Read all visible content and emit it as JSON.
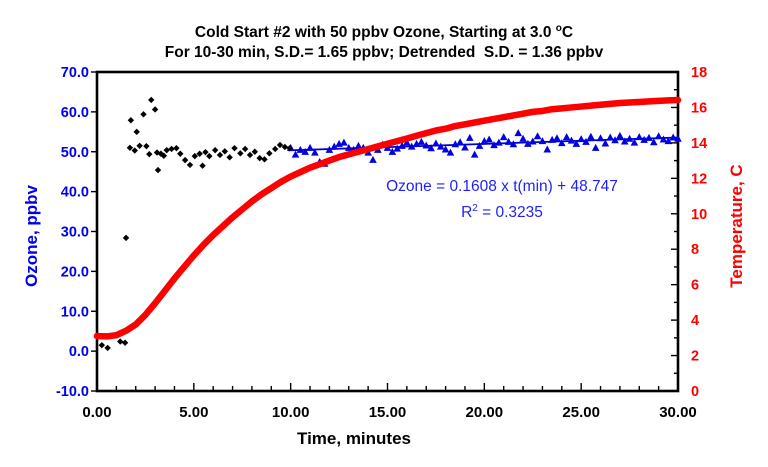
{
  "header": {
    "title_line1_prefix": "Cold Start #2 with 50 ppbv Ozone, Starting at 3.0 ",
    "title_line1_sup": "o",
    "title_line1_suffix": "C",
    "title_line2": "For 10-30 min, S.D.= 1.65 ppbv; Detrended  S.D. = 1.36 ppbv"
  },
  "annotation": {
    "equation": "Ozone = 0.1608 x t(min) + 48.747",
    "r2_prefix": "R",
    "r2_sup": "2",
    "r2_suffix": " = 0.3235"
  },
  "chart_data": {
    "type": "combo",
    "title": "Cold Start #2 with 50 ppbv Ozone, Starting at 3.0 °C",
    "subtitle": "For 10-30 min, S.D.= 1.65 ppbv; Detrended  S.D. = 1.36 ppbv",
    "xlabel": "Time, minutes",
    "ylabel_left": "Ozone, ppbv",
    "ylabel_right": "Temperature, C",
    "xlim": [
      0,
      30
    ],
    "ylim_left": [
      -10,
      70
    ],
    "ylim_right": [
      0,
      18
    ],
    "grid": false,
    "legend": false,
    "annotation_line1": "Ozone = 0.1608 x t(min) + 48.747",
    "annotation_line2": "R² = 0.3235",
    "axes": {
      "x": {
        "major_values": [
          0,
          5,
          10,
          15,
          20,
          25,
          30
        ],
        "labels": [
          "0.00",
          "5.00",
          "10.00",
          "15.00",
          "20.00",
          "25.00",
          "30.00"
        ],
        "minor_step": 1,
        "color": "#000000"
      },
      "y_left": {
        "major_values": [
          70,
          60,
          50,
          40,
          30,
          20,
          10,
          0,
          -10
        ],
        "labels": [
          "70.0",
          "60.0",
          "50.0",
          "40.0",
          "30.0",
          "20.0",
          "10.0",
          "0.0",
          "-10.0"
        ],
        "color": "#0000f0"
      },
      "y_right": {
        "major_values": [
          18,
          16,
          14,
          12,
          10,
          8,
          6,
          4,
          2,
          0
        ],
        "labels": [
          "18",
          "16",
          "14",
          "12",
          "10",
          "8",
          "6",
          "4",
          "2",
          "0"
        ],
        "minor_step": 1,
        "color": "#ff0000"
      }
    },
    "series": [
      {
        "name": "ozone-trend-line",
        "type": "line",
        "axis": "left",
        "color": "#0000cc",
        "width": 1.8,
        "points": [
          [
            9.9,
            50.34
          ],
          [
            30,
            53.57
          ]
        ]
      },
      {
        "name": "ozone-10-30-min",
        "type": "scatter",
        "marker": "triangle",
        "axis": "left",
        "color": "#0000e0",
        "points": [
          [
            10.0,
            50.9
          ],
          [
            10.25,
            49.2
          ],
          [
            10.5,
            50.4
          ],
          [
            10.75,
            49.9
          ],
          [
            11.0,
            50.9
          ],
          [
            11.25,
            49.7
          ],
          [
            11.5,
            47.4
          ],
          [
            11.75,
            46.9
          ],
          [
            12.0,
            50.4
          ],
          [
            12.25,
            51.2
          ],
          [
            12.5,
            51.9
          ],
          [
            12.75,
            52.2
          ],
          [
            13.0,
            50.9
          ],
          [
            13.25,
            50.4
          ],
          [
            13.5,
            51.4
          ],
          [
            13.75,
            50.9
          ],
          [
            14.0,
            49.7
          ],
          [
            14.25,
            47.9
          ],
          [
            14.5,
            50.4
          ],
          [
            14.75,
            51.7
          ],
          [
            15.0,
            50.9
          ],
          [
            15.25,
            49.9
          ],
          [
            15.5,
            50.7
          ],
          [
            15.75,
            51.4
          ],
          [
            16.0,
            52.2
          ],
          [
            16.25,
            51.2
          ],
          [
            16.5,
            51.9
          ],
          [
            16.75,
            52.4
          ],
          [
            17.0,
            51.5
          ],
          [
            17.25,
            50.8
          ],
          [
            17.5,
            52.0
          ],
          [
            17.75,
            51.2
          ],
          [
            18.0,
            50.5
          ],
          [
            18.25,
            49.7
          ],
          [
            18.5,
            51.8
          ],
          [
            18.75,
            52.3
          ],
          [
            19.0,
            51.0
          ],
          [
            19.25,
            53.4
          ],
          [
            19.5,
            49.2
          ],
          [
            19.75,
            51.4
          ],
          [
            20.0,
            52.6
          ],
          [
            20.25,
            53.0
          ],
          [
            20.5,
            51.6
          ],
          [
            20.75,
            52.2
          ],
          [
            21.0,
            53.6
          ],
          [
            21.25,
            52.4
          ],
          [
            21.5,
            51.8
          ],
          [
            21.75,
            54.6
          ],
          [
            22.0,
            53.2
          ],
          [
            22.25,
            51.9
          ],
          [
            22.5,
            52.5
          ],
          [
            22.75,
            53.8
          ],
          [
            23.0,
            52.6
          ],
          [
            23.25,
            50.5
          ],
          [
            23.5,
            52.9
          ],
          [
            23.75,
            53.3
          ],
          [
            24.0,
            52.1
          ],
          [
            24.25,
            53.6
          ],
          [
            24.5,
            52.7
          ],
          [
            24.75,
            51.9
          ],
          [
            25.0,
            53.1
          ],
          [
            25.25,
            52.4
          ],
          [
            25.5,
            53.7
          ],
          [
            25.75,
            50.9
          ],
          [
            26.0,
            53.3
          ],
          [
            26.25,
            52.0
          ],
          [
            26.5,
            53.5
          ],
          [
            26.75,
            52.8
          ],
          [
            27.0,
            53.9
          ],
          [
            27.25,
            52.5
          ],
          [
            27.5,
            53.2
          ],
          [
            27.75,
            52.2
          ],
          [
            28.0,
            53.6
          ],
          [
            28.25,
            52.9
          ],
          [
            28.5,
            53.4
          ],
          [
            28.75,
            52.3
          ],
          [
            29.0,
            53.8
          ],
          [
            29.25,
            53.0
          ],
          [
            29.5,
            52.6
          ],
          [
            29.75,
            53.5
          ],
          [
            30.0,
            53.2
          ]
        ]
      },
      {
        "name": "ozone-0-10-min",
        "type": "scatter",
        "marker": "diamond",
        "axis": "left",
        "color": "#000000",
        "points": [
          [
            0.25,
            1.5
          ],
          [
            0.55,
            0.8
          ],
          [
            1.2,
            2.4
          ],
          [
            1.45,
            2.1
          ],
          [
            1.5,
            28.4
          ],
          [
            1.7,
            51.0
          ],
          [
            1.75,
            57.9
          ],
          [
            1.95,
            50.3
          ],
          [
            2.05,
            55.0
          ],
          [
            2.2,
            51.5
          ],
          [
            2.4,
            59.4
          ],
          [
            2.55,
            51.4
          ],
          [
            2.7,
            49.4
          ],
          [
            2.8,
            63.0
          ],
          [
            3.0,
            60.6
          ],
          [
            3.1,
            49.8
          ],
          [
            3.15,
            45.4
          ],
          [
            3.3,
            49.5
          ],
          [
            3.45,
            49.0
          ],
          [
            3.6,
            50.4
          ],
          [
            3.85,
            50.7
          ],
          [
            4.1,
            50.9
          ],
          [
            4.3,
            49.5
          ],
          [
            4.55,
            47.9
          ],
          [
            4.8,
            46.7
          ],
          [
            5.05,
            48.9
          ],
          [
            5.3,
            49.5
          ],
          [
            5.45,
            46.5
          ],
          [
            5.6,
            49.9
          ],
          [
            5.8,
            48.9
          ],
          [
            6.1,
            50.4
          ],
          [
            6.35,
            49.2
          ],
          [
            6.6,
            50.1
          ],
          [
            6.85,
            48.6
          ],
          [
            7.1,
            50.9
          ],
          [
            7.4,
            49.6
          ],
          [
            7.65,
            50.7
          ],
          [
            7.9,
            49.2
          ],
          [
            8.15,
            50.0
          ],
          [
            8.4,
            48.4
          ],
          [
            8.65,
            48.1
          ],
          [
            8.9,
            49.6
          ],
          [
            9.2,
            50.7
          ],
          [
            9.45,
            51.7
          ],
          [
            9.7,
            51.2
          ],
          [
            9.95,
            50.9
          ]
        ]
      },
      {
        "name": "temperature",
        "type": "line",
        "axis": "right",
        "color": "#ff0000",
        "width": 6.5,
        "points": [
          [
            0,
            3.1
          ],
          [
            0.5,
            3.08
          ],
          [
            1,
            3.15
          ],
          [
            1.5,
            3.4
          ],
          [
            2,
            3.75
          ],
          [
            2.5,
            4.3
          ],
          [
            3,
            4.95
          ],
          [
            3.5,
            5.65
          ],
          [
            4,
            6.35
          ],
          [
            4.5,
            7.0
          ],
          [
            5,
            7.65
          ],
          [
            5.5,
            8.25
          ],
          [
            6,
            8.8
          ],
          [
            6.5,
            9.3
          ],
          [
            7,
            9.8
          ],
          [
            7.5,
            10.25
          ],
          [
            8,
            10.7
          ],
          [
            8.5,
            11.1
          ],
          [
            9,
            11.45
          ],
          [
            9.5,
            11.8
          ],
          [
            10,
            12.1
          ],
          [
            10.5,
            12.35
          ],
          [
            11,
            12.6
          ],
          [
            11.5,
            12.8
          ],
          [
            12,
            13.0
          ],
          [
            12.5,
            13.2
          ],
          [
            13,
            13.35
          ],
          [
            13.5,
            13.5
          ],
          [
            14,
            13.65
          ],
          [
            14.5,
            13.8
          ],
          [
            15,
            13.95
          ],
          [
            15.5,
            14.1
          ],
          [
            16,
            14.25
          ],
          [
            16.5,
            14.4
          ],
          [
            17,
            14.55
          ],
          [
            17.5,
            14.7
          ],
          [
            18,
            14.8
          ],
          [
            18.5,
            14.95
          ],
          [
            19,
            15.05
          ],
          [
            19.5,
            15.15
          ],
          [
            20,
            15.25
          ],
          [
            20.5,
            15.35
          ],
          [
            21,
            15.45
          ],
          [
            21.5,
            15.55
          ],
          [
            22,
            15.65
          ],
          [
            22.5,
            15.75
          ],
          [
            23,
            15.8
          ],
          [
            23.5,
            15.9
          ],
          [
            24,
            15.95
          ],
          [
            24.5,
            16.0
          ],
          [
            25,
            16.05
          ],
          [
            25.5,
            16.1
          ],
          [
            26,
            16.15
          ],
          [
            26.5,
            16.2
          ],
          [
            27,
            16.25
          ],
          [
            27.5,
            16.28
          ],
          [
            28,
            16.31
          ],
          [
            28.5,
            16.34
          ],
          [
            29,
            16.37
          ],
          [
            29.5,
            16.4
          ],
          [
            30,
            16.42
          ]
        ]
      }
    ]
  }
}
